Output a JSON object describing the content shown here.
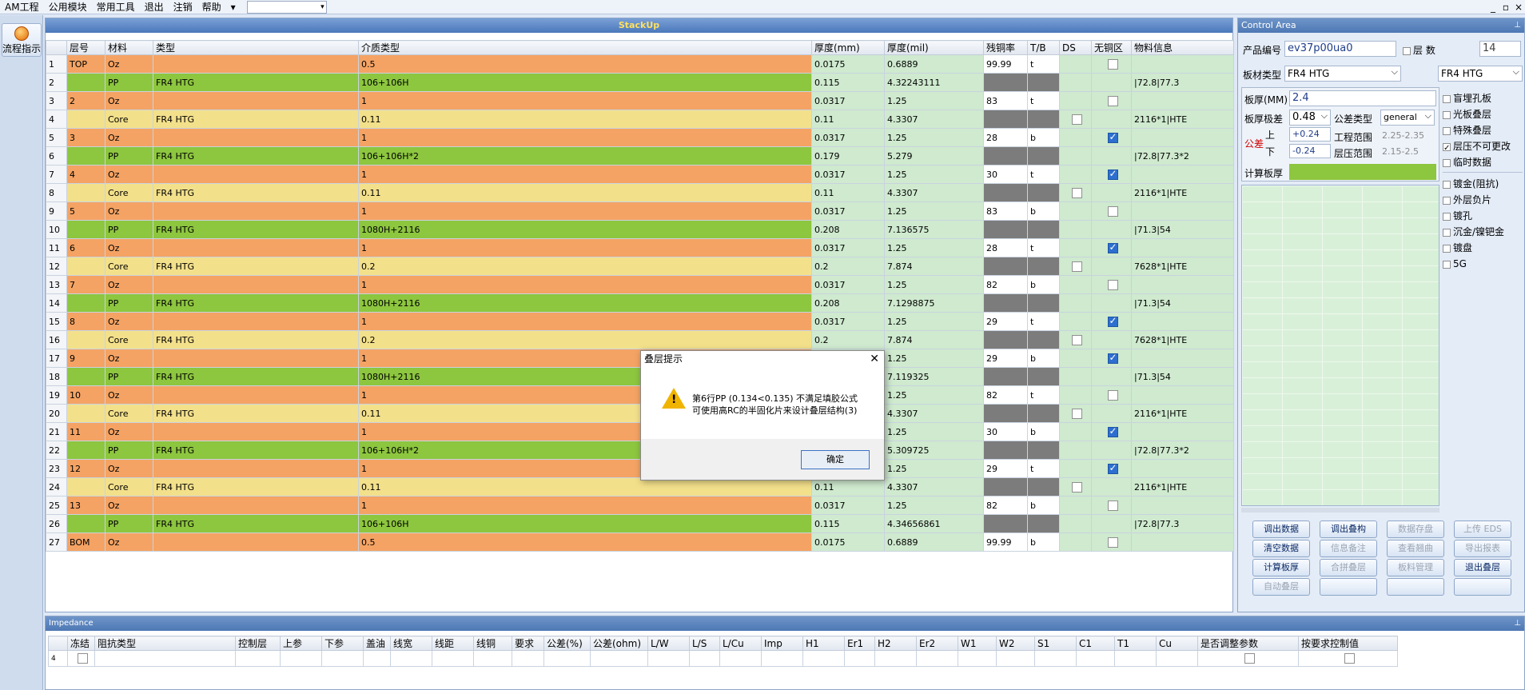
{
  "menu": {
    "items": [
      "AM工程",
      "公用模块",
      "常用工具",
      "退出",
      "注销",
      "帮助"
    ],
    "combo_value": ""
  },
  "window_controls": [
    "_",
    "▫",
    "×"
  ],
  "left_strip": {
    "flow_button": "流程指示"
  },
  "stackup": {
    "title": "StackUp",
    "columns": [
      "层号",
      "材料",
      "类型",
      "介质类型",
      "厚度(mm)",
      "厚度(mil)",
      "残铜率",
      "T/B",
      "DS",
      "无铜区",
      "物料信息"
    ],
    "rows": [
      {
        "n": "1",
        "layer": "TOP",
        "mat": "Oz",
        "type": "",
        "diel": "0.5",
        "mm": "0.0175",
        "mil": "0.6889",
        "res": "99.99",
        "tb": "t",
        "ds": "",
        "noc": false,
        "info": "",
        "kind": "oz"
      },
      {
        "n": "2",
        "layer": "",
        "mat": "PP",
        "type": "FR4 HTG",
        "diel": "106+106H",
        "mm": "0.115",
        "mil": "4.32243111",
        "res": "",
        "tb": "",
        "ds": "",
        "noc": null,
        "info": "|72.8|77.3",
        "kind": "pp"
      },
      {
        "n": "3",
        "layer": "2",
        "mat": "Oz",
        "type": "",
        "diel": "1",
        "mm": "0.0317",
        "mil": "1.25",
        "res": "83",
        "tb": "t",
        "ds": "",
        "noc": false,
        "info": "",
        "kind": "oz"
      },
      {
        "n": "4",
        "layer": "",
        "mat": "Core",
        "type": "FR4 HTG",
        "diel": "0.11",
        "mm": "0.11",
        "mil": "4.3307",
        "res": "",
        "tb": "",
        "ds": false,
        "noc": null,
        "info": "2116*1|HTE",
        "kind": "core"
      },
      {
        "n": "5",
        "layer": "3",
        "mat": "Oz",
        "type": "",
        "diel": "1",
        "mm": "0.0317",
        "mil": "1.25",
        "res": "28",
        "tb": "b",
        "ds": "",
        "noc": true,
        "info": "",
        "kind": "oz"
      },
      {
        "n": "6",
        "layer": "",
        "mat": "PP",
        "type": "FR4 HTG",
        "diel": "106+106H*2",
        "mm": "0.179",
        "mil": "5.279",
        "res": "",
        "tb": "",
        "ds": "",
        "noc": null,
        "info": "|72.8|77.3*2",
        "kind": "pp"
      },
      {
        "n": "7",
        "layer": "4",
        "mat": "Oz",
        "type": "",
        "diel": "1",
        "mm": "0.0317",
        "mil": "1.25",
        "res": "30",
        "tb": "t",
        "ds": "",
        "noc": true,
        "info": "",
        "kind": "oz"
      },
      {
        "n": "8",
        "layer": "",
        "mat": "Core",
        "type": "FR4 HTG",
        "diel": "0.11",
        "mm": "0.11",
        "mil": "4.3307",
        "res": "",
        "tb": "",
        "ds": false,
        "noc": null,
        "info": "2116*1|HTE",
        "kind": "core"
      },
      {
        "n": "9",
        "layer": "5",
        "mat": "Oz",
        "type": "",
        "diel": "1",
        "mm": "0.0317",
        "mil": "1.25",
        "res": "83",
        "tb": "b",
        "ds": "",
        "noc": false,
        "info": "",
        "kind": "oz"
      },
      {
        "n": "10",
        "layer": "",
        "mat": "PP",
        "type": "FR4 HTG",
        "diel": "1080H+2116",
        "mm": "0.208",
        "mil": "7.136575",
        "res": "",
        "tb": "",
        "ds": "",
        "noc": null,
        "info": "|71.3|54",
        "kind": "pp"
      },
      {
        "n": "11",
        "layer": "6",
        "mat": "Oz",
        "type": "",
        "diel": "1",
        "mm": "0.0317",
        "mil": "1.25",
        "res": "28",
        "tb": "t",
        "ds": "",
        "noc": true,
        "info": "",
        "kind": "oz"
      },
      {
        "n": "12",
        "layer": "",
        "mat": "Core",
        "type": "FR4 HTG",
        "diel": "0.2",
        "mm": "0.2",
        "mil": "7.874",
        "res": "",
        "tb": "",
        "ds": false,
        "noc": null,
        "info": "7628*1|HTE",
        "kind": "core"
      },
      {
        "n": "13",
        "layer": "7",
        "mat": "Oz",
        "type": "",
        "diel": "1",
        "mm": "0.0317",
        "mil": "1.25",
        "res": "82",
        "tb": "b",
        "ds": "",
        "noc": false,
        "info": "",
        "kind": "oz"
      },
      {
        "n": "14",
        "layer": "",
        "mat": "PP",
        "type": "FR4 HTG",
        "diel": "1080H+2116",
        "mm": "0.208",
        "mil": "7.1298875",
        "res": "",
        "tb": "",
        "ds": "",
        "noc": null,
        "info": "|71.3|54",
        "kind": "pp"
      },
      {
        "n": "15",
        "layer": "8",
        "mat": "Oz",
        "type": "",
        "diel": "1",
        "mm": "0.0317",
        "mil": "1.25",
        "res": "29",
        "tb": "t",
        "ds": "",
        "noc": true,
        "info": "",
        "kind": "oz"
      },
      {
        "n": "16",
        "layer": "",
        "mat": "Core",
        "type": "FR4 HTG",
        "diel": "0.2",
        "mm": "0.2",
        "mil": "7.874",
        "res": "",
        "tb": "",
        "ds": false,
        "noc": null,
        "info": "7628*1|HTE",
        "kind": "core"
      },
      {
        "n": "17",
        "layer": "9",
        "mat": "Oz",
        "type": "",
        "diel": "1",
        "mm": "",
        "mil": "1.25",
        "res": "29",
        "tb": "b",
        "ds": "",
        "noc": true,
        "info": "",
        "kind": "oz"
      },
      {
        "n": "18",
        "layer": "",
        "mat": "PP",
        "type": "FR4 HTG",
        "diel": "1080H+2116",
        "mm": "",
        "mil": "7.119325",
        "res": "",
        "tb": "",
        "ds": "",
        "noc": null,
        "info": "|71.3|54",
        "kind": "pp"
      },
      {
        "n": "19",
        "layer": "10",
        "mat": "Oz",
        "type": "",
        "diel": "1",
        "mm": "",
        "mil": "1.25",
        "res": "82",
        "tb": "t",
        "ds": "",
        "noc": false,
        "info": "",
        "kind": "oz"
      },
      {
        "n": "20",
        "layer": "",
        "mat": "Core",
        "type": "FR4 HTG",
        "diel": "0.11",
        "mm": "",
        "mil": "4.3307",
        "res": "",
        "tb": "",
        "ds": false,
        "noc": null,
        "info": "2116*1|HTE",
        "kind": "core"
      },
      {
        "n": "21",
        "layer": "11",
        "mat": "Oz",
        "type": "",
        "diel": "1",
        "mm": "",
        "mil": "1.25",
        "res": "30",
        "tb": "b",
        "ds": "",
        "noc": true,
        "info": "",
        "kind": "oz"
      },
      {
        "n": "22",
        "layer": "",
        "mat": "PP",
        "type": "FR4 HTG",
        "diel": "106+106H*2",
        "mm": "",
        "mil": "5.309725",
        "res": "",
        "tb": "",
        "ds": "",
        "noc": null,
        "info": "|72.8|77.3*2",
        "kind": "pp"
      },
      {
        "n": "23",
        "layer": "12",
        "mat": "Oz",
        "type": "",
        "diel": "1",
        "mm": "",
        "mil": "1.25",
        "res": "29",
        "tb": "t",
        "ds": "",
        "noc": true,
        "info": "",
        "kind": "oz"
      },
      {
        "n": "24",
        "layer": "",
        "mat": "Core",
        "type": "FR4 HTG",
        "diel": "0.11",
        "mm": "0.11",
        "mil": "4.3307",
        "res": "",
        "tb": "",
        "ds": false,
        "noc": null,
        "info": "2116*1|HTE",
        "kind": "core"
      },
      {
        "n": "25",
        "layer": "13",
        "mat": "Oz",
        "type": "",
        "diel": "1",
        "mm": "0.0317",
        "mil": "1.25",
        "res": "82",
        "tb": "b",
        "ds": "",
        "noc": false,
        "info": "",
        "kind": "oz"
      },
      {
        "n": "26",
        "layer": "",
        "mat": "PP",
        "type": "FR4 HTG",
        "diel": "106+106H",
        "mm": "0.115",
        "mil": "4.34656861",
        "res": "",
        "tb": "",
        "ds": "",
        "noc": null,
        "info": "|72.8|77.3",
        "kind": "pp"
      },
      {
        "n": "27",
        "layer": "BOM",
        "mat": "Oz",
        "type": "",
        "diel": "0.5",
        "mm": "0.0175",
        "mil": "0.6889",
        "res": "99.99",
        "tb": "b",
        "ds": "",
        "noc": false,
        "info": "",
        "kind": "oz"
      }
    ]
  },
  "dialog": {
    "title": "叠层提示",
    "line1": "第6行PP (0.134<0.135) 不满足填胶公式",
    "line2": "可使用高RC的半固化片来设计叠层结构(3)",
    "ok": "确定"
  },
  "control": {
    "title": "Control Area",
    "product_label": "产品编号",
    "product_value": "ev37p00ua0",
    "layers_label": "层 数",
    "layers_value": "14",
    "board_type_label": "板材类型",
    "board_type_value": "FR4 HTG",
    "board_type_value2": "FR4 HTG",
    "thickness_label": "板厚(MM)",
    "thickness_value": "2.4",
    "tol_label": "板厚极差",
    "tol_value": "0.48",
    "tol_type_label": "公差类型",
    "tol_type_value": "general",
    "tol_group": "公差",
    "upper_label": "上",
    "upper_value": "+0.24",
    "lower_label": "下",
    "lower_value": "-0.24",
    "eng_range_label": "工程范围",
    "eng_range_value": "2.25-2.35",
    "press_range_label": "层压范围",
    "press_range_value": "2.15-2.5",
    "calc_label": "计算板厚",
    "options": [
      {
        "label": "盲埋孔板",
        "checked": false
      },
      {
        "label": "光板叠层",
        "checked": false
      },
      {
        "label": "特殊叠层",
        "checked": false
      },
      {
        "label": "层压不可更改",
        "checked": true
      },
      {
        "label": "临时数据",
        "checked": false
      }
    ],
    "options2": [
      {
        "label": "镀金(阻抗)",
        "checked": false
      },
      {
        "label": "外层负片",
        "checked": false
      },
      {
        "label": "镀孔",
        "checked": false
      },
      {
        "label": "沉金/镍钯金",
        "checked": false
      },
      {
        "label": "镀盘",
        "checked": false
      },
      {
        "label": "5G",
        "checked": false
      }
    ],
    "buttons": [
      {
        "label": "调出数据",
        "enabled": true
      },
      {
        "label": "调出叠构",
        "enabled": true
      },
      {
        "label": "数据存盘",
        "enabled": false
      },
      {
        "label": "上传 EDS",
        "enabled": false
      },
      {
        "label": "清空数据",
        "enabled": true
      },
      {
        "label": "信息备注",
        "enabled": false
      },
      {
        "label": "查看翘曲",
        "enabled": false
      },
      {
        "label": "导出报表",
        "enabled": false
      },
      {
        "label": "计算板厚",
        "enabled": true
      },
      {
        "label": "合拼叠层",
        "enabled": false
      },
      {
        "label": "板料管理",
        "enabled": false
      },
      {
        "label": "退出叠层",
        "enabled": true
      },
      {
        "label": "自动叠层",
        "enabled": false
      },
      {
        "label": "",
        "enabled": false
      },
      {
        "label": "",
        "enabled": false
      },
      {
        "label": "",
        "enabled": false
      }
    ]
  },
  "impedance": {
    "title": "Impedance",
    "columns": [
      "冻结",
      "阻抗类型",
      "控制层",
      "上参",
      "下参",
      "盖油",
      "线宽",
      "线距",
      "线铜",
      "要求",
      "公差(%)",
      "公差(ohm)",
      "L/W",
      "L/S",
      "L/Cu",
      "Imp",
      "H1",
      "Er1",
      "H2",
      "Er2",
      "W1",
      "W2",
      "S1",
      "C1",
      "T1",
      "Cu",
      "是否调整参数",
      "按要求控制值"
    ],
    "row_marker": "4"
  }
}
